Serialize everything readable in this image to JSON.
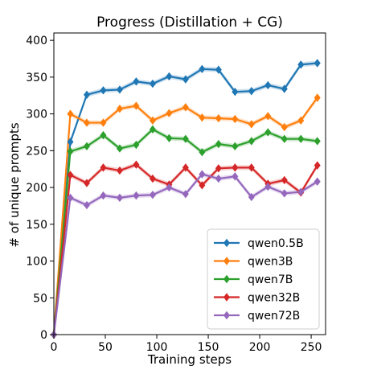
{
  "chart_data": {
    "type": "line",
    "title": "Progress (Distillation + CG)",
    "xlabel": "Training steps",
    "ylabel": "# of unique prompts",
    "xlim": [
      0,
      264
    ],
    "ylim": [
      0,
      410
    ],
    "xticks": [
      0,
      50,
      100,
      150,
      200,
      250
    ],
    "yticks": [
      0,
      50,
      100,
      150,
      200,
      250,
      300,
      350,
      400
    ],
    "grid": false,
    "legend_position": "lower-right",
    "x": [
      0,
      16,
      32,
      48,
      64,
      80,
      96,
      112,
      128,
      144,
      160,
      176,
      192,
      208,
      224,
      240,
      256
    ],
    "series": [
      {
        "name": "qwen0.5B",
        "color": "#1f77b4",
        "values": [
          0,
          262,
          326,
          332,
          333,
          344,
          341,
          351,
          347,
          361,
          360,
          330,
          331,
          339,
          334,
          367,
          369
        ]
      },
      {
        "name": "qwen3B",
        "color": "#ff7f0e",
        "values": [
          0,
          300,
          288,
          288,
          307,
          311,
          291,
          301,
          309,
          295,
          294,
          293,
          286,
          297,
          282,
          291,
          322
        ]
      },
      {
        "name": "qwen7B",
        "color": "#2ca02c",
        "values": [
          0,
          249,
          256,
          271,
          253,
          258,
          279,
          267,
          266,
          248,
          259,
          256,
          263,
          275,
          266,
          266,
          263
        ]
      },
      {
        "name": "qwen32B",
        "color": "#d62728",
        "values": [
          0,
          217,
          206,
          227,
          223,
          231,
          212,
          204,
          227,
          203,
          226,
          227,
          227,
          205,
          210,
          193,
          230
        ]
      },
      {
        "name": "qwen72B",
        "color": "#9467bd",
        "values": [
          0,
          186,
          176,
          189,
          186,
          189,
          190,
          200,
          191,
          218,
          212,
          215,
          187,
          201,
          192,
          194,
          208
        ]
      }
    ]
  }
}
